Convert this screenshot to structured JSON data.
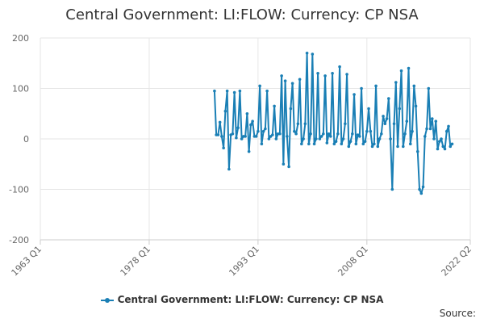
{
  "title": "Central Government: LI:FLOW: Currency: CP NSA",
  "source_label": "Source:",
  "legend": {
    "label": "Central Government: LI:FLOW: Currency: CP NSA"
  },
  "colors": {
    "series": "#1a7fb5",
    "grid": "#e6e6e6",
    "axis": "#cccccc",
    "text": "#333333"
  },
  "chart_data": {
    "type": "line",
    "title": "Central Government: LI:FLOW: Currency: CP NSA",
    "xlabel": "",
    "ylabel": "",
    "x_tick_labels": [
      "1963 Q1",
      "1978 Q1",
      "1993 Q1",
      "2008 Q1",
      "2022 Q2"
    ],
    "y_ticks": [
      200,
      100,
      0,
      -100,
      -200
    ],
    "ylim": [
      -200,
      200
    ],
    "xlim": [
      "1963 Q1",
      "2022 Q2"
    ],
    "grid": true,
    "legend_position": "bottom",
    "series": [
      {
        "name": "Central Government: LI:FLOW: Currency: CP NSA",
        "start": "1987 Q1",
        "frequency": "quarterly",
        "values": [
          95,
          8,
          8,
          33,
          5,
          -18,
          55,
          95,
          -60,
          8,
          10,
          92,
          2,
          22,
          95,
          0,
          5,
          5,
          50,
          -25,
          28,
          35,
          5,
          5,
          15,
          105,
          -10,
          15,
          20,
          95,
          0,
          5,
          8,
          65,
          0,
          10,
          10,
          125,
          -50,
          115,
          5,
          -55,
          60,
          110,
          15,
          10,
          30,
          118,
          -10,
          0,
          30,
          170,
          -10,
          10,
          168,
          -10,
          0,
          130,
          0,
          5,
          10,
          125,
          -8,
          10,
          5,
          130,
          -10,
          -5,
          10,
          143,
          -10,
          0,
          30,
          128,
          -15,
          -5,
          10,
          88,
          -10,
          8,
          5,
          100,
          -10,
          -5,
          15,
          60,
          15,
          -15,
          -10,
          105,
          -15,
          0,
          10,
          45,
          30,
          40,
          80,
          0,
          -100,
          30,
          112,
          -15,
          60,
          135,
          -15,
          10,
          35,
          140,
          -10,
          15,
          105,
          65,
          -25,
          -100,
          -108,
          -95,
          5,
          20,
          100,
          20,
          40,
          0,
          35,
          -20,
          -5,
          0,
          -15,
          -20,
          15,
          25,
          -15,
          -10
        ]
      }
    ]
  }
}
